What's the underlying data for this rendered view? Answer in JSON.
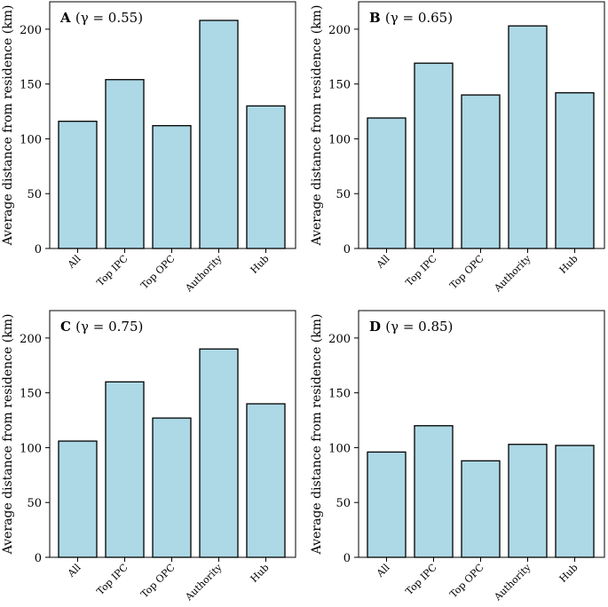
{
  "colors": {
    "bar_fill": "#add8e6",
    "bar_edge": "#000000",
    "background": "#ffffff"
  },
  "chart_data": [
    {
      "panel": "A",
      "type": "bar",
      "title_letter": "A",
      "title_rest": "(γ = 0.55)",
      "categories": [
        "All",
        "Top IPC",
        "Top OPC",
        "Authority",
        "Hub"
      ],
      "values": [
        116,
        154,
        112,
        208,
        130
      ],
      "ylabel": "Average distance from residence (km)",
      "xlabel": "",
      "ylim": [
        0,
        225
      ],
      "yticks": [
        0,
        50,
        100,
        150,
        200
      ],
      "grid": false
    },
    {
      "panel": "B",
      "type": "bar",
      "title_letter": "B",
      "title_rest": "(γ = 0.65)",
      "categories": [
        "All",
        "Top IPC",
        "Top OPC",
        "Authority",
        "Hub"
      ],
      "values": [
        119,
        169,
        140,
        203,
        142
      ],
      "ylabel": "Average distance from residence (km)",
      "xlabel": "",
      "ylim": [
        0,
        225
      ],
      "yticks": [
        0,
        50,
        100,
        150,
        200
      ],
      "grid": false
    },
    {
      "panel": "C",
      "type": "bar",
      "title_letter": "C",
      "title_rest": "(γ = 0.75)",
      "categories": [
        "All",
        "Top IPC",
        "Top OPC",
        "Authority",
        "Hub"
      ],
      "values": [
        106,
        160,
        127,
        190,
        140
      ],
      "ylabel": "Average distance from residence (km)",
      "xlabel": "",
      "ylim": [
        0,
        225
      ],
      "yticks": [
        0,
        50,
        100,
        150,
        200
      ],
      "grid": false
    },
    {
      "panel": "D",
      "type": "bar",
      "title_letter": "D",
      "title_rest": "(γ = 0.85)",
      "categories": [
        "All",
        "Top IPC",
        "Top OPC",
        "Authority",
        "Hub"
      ],
      "values": [
        96,
        120,
        88,
        103,
        102
      ],
      "ylabel": "Average distance from residence (km)",
      "xlabel": "",
      "ylim": [
        0,
        225
      ],
      "yticks": [
        0,
        50,
        100,
        150,
        200
      ],
      "grid": false
    }
  ]
}
